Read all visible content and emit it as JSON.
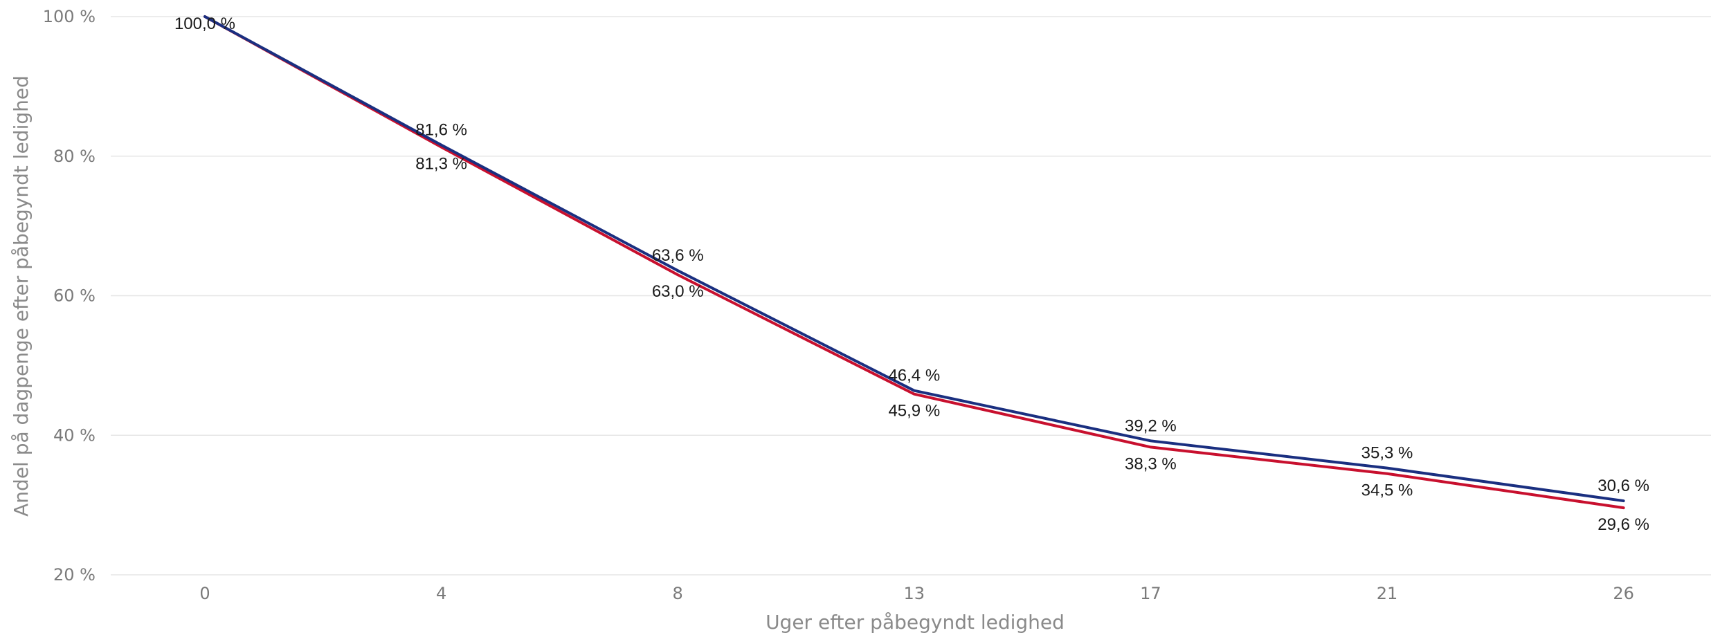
{
  "chart_data": {
    "type": "line",
    "title": "",
    "xlabel": "Uger efter påbegyndt ledighed",
    "ylabel": "Andel på dagpenge efter påbegyndt ledighed",
    "categories": [
      "0",
      "4",
      "8",
      "13",
      "17",
      "21",
      "26"
    ],
    "ylim": [
      20,
      100
    ],
    "yticks": [
      "20 %",
      "40 %",
      "60 %",
      "80 %",
      "100 %"
    ],
    "grid": true,
    "legend": "none",
    "series": [
      {
        "color": "#1a2f80",
        "values": [
          100.0,
          81.6,
          63.6,
          46.4,
          39.2,
          35.3,
          30.6
        ],
        "labels": [
          "100,0 %",
          "81,6 %",
          "63,6 %",
          "46,4 %",
          "39,2 %",
          "35,3 %",
          "30,6 %"
        ]
      },
      {
        "color": "#c8102e",
        "values": [
          100.0,
          81.3,
          63.0,
          45.9,
          38.3,
          34.5,
          29.6
        ],
        "labels": [
          "",
          "81,3 %",
          "63,0 %",
          "45,9 %",
          "38,3 %",
          "34,5 %",
          "29,6 %"
        ]
      }
    ]
  }
}
